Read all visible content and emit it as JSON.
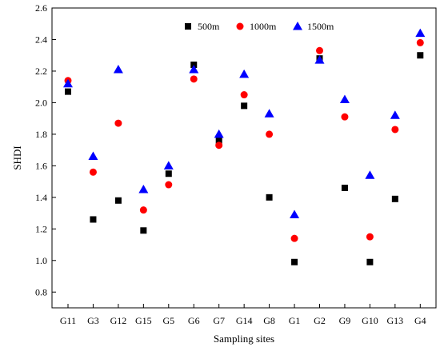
{
  "chart_data": {
    "type": "scatter",
    "title": "",
    "xlabel": "Sampling sites",
    "ylabel": "SHDI",
    "categories": [
      "G11",
      "G3",
      "G12",
      "G15",
      "G5",
      "G6",
      "G7",
      "G14",
      "G8",
      "G1",
      "G2",
      "G9",
      "G10",
      "G13",
      "G4"
    ],
    "ylim": [
      0.7,
      2.6
    ],
    "yticks": [
      "0.8",
      "1.0",
      "1.2",
      "1.4",
      "1.6",
      "1.8",
      "2.0",
      "2.2",
      "2.4",
      "2.6"
    ],
    "grid": false,
    "legend_position": "top",
    "series": [
      {
        "name": "500m",
        "marker": "square",
        "color": "#000000",
        "values": [
          2.07,
          1.26,
          1.38,
          1.19,
          1.55,
          2.24,
          1.76,
          1.98,
          1.4,
          0.99,
          2.28,
          1.46,
          0.99,
          1.39,
          2.3
        ]
      },
      {
        "name": "1000m",
        "marker": "circle",
        "color": "#ff0000",
        "values": [
          2.14,
          1.56,
          1.87,
          1.32,
          1.48,
          2.15,
          1.73,
          2.05,
          1.8,
          1.14,
          2.33,
          1.91,
          1.15,
          1.83,
          2.38
        ]
      },
      {
        "name": "1500m",
        "marker": "triangle",
        "color": "#0000ff",
        "values": [
          2.12,
          1.66,
          2.21,
          1.45,
          1.6,
          2.21,
          1.8,
          2.18,
          1.93,
          1.29,
          2.27,
          2.02,
          1.54,
          1.92,
          2.44
        ]
      }
    ]
  }
}
